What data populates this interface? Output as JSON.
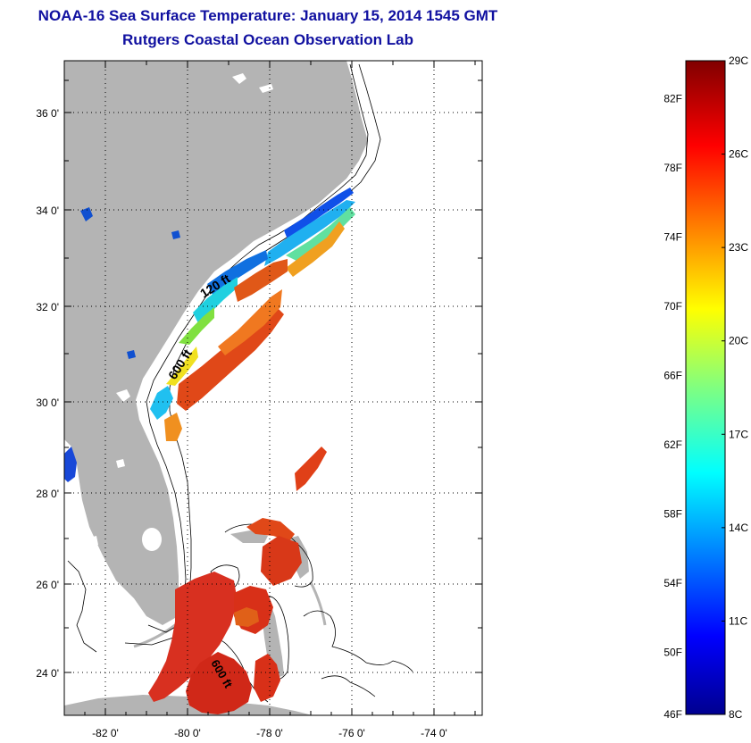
{
  "header": {
    "title": "NOAA-16 Sea Surface Temperature:  January 15, 2014 1545 GMT",
    "subtitle": "Rutgers Coastal Ocean Observation Lab"
  },
  "map": {
    "lat_labels": [
      "36 0'",
      "34 0'",
      "32 0'",
      "30 0'",
      "28 0'",
      "26 0'",
      "24 0'"
    ],
    "lon_labels": [
      "-82 0'",
      "-80 0'",
      "-78 0'",
      "-76 0'",
      "-74 0'"
    ],
    "isobath_labels": [
      "120 ft",
      "600 ft",
      "600 ft"
    ],
    "land_color": "#b4b4b4",
    "grid": "dotted"
  },
  "colorbar": {
    "fahrenheit_labels": [
      "82F",
      "78F",
      "74F",
      "70F",
      "66F",
      "62F",
      "58F",
      "54F",
      "50F",
      "46F"
    ],
    "celsius_labels": [
      "29C",
      "26C",
      "23C",
      "20C",
      "17C",
      "14C",
      "11C",
      "8C"
    ],
    "min_c": 8,
    "max_c": 29,
    "colormap": "jet"
  }
}
